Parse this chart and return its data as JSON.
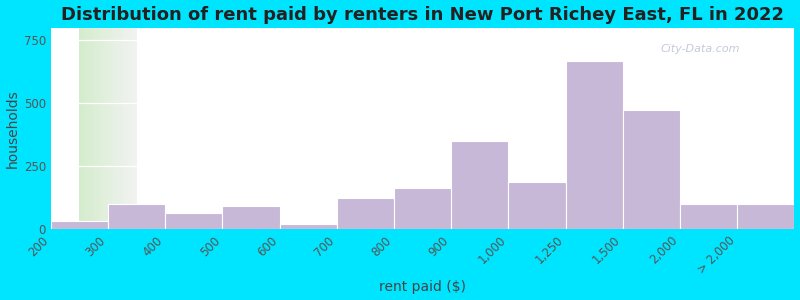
{
  "title": "Distribution of rent paid by renters in New Port Richey East, FL in 2022",
  "xlabel": "rent paid ($)",
  "ylabel": "households",
  "bar_color": "#c8b8d8",
  "bar_edgecolor": "#ffffff",
  "background_outer": "#00e5ff",
  "background_inner_left": "#d4eccc",
  "background_inner_right": "#f2f2f2",
  "categories": [
    "200",
    "300",
    "400",
    "500",
    "600",
    "700",
    "800",
    "900",
    "1,000",
    "1,250",
    "1,500",
    "2,000",
    "> 2,000"
  ],
  "values": [
    30,
    100,
    65,
    90,
    20,
    125,
    165,
    350,
    185,
    670,
    475,
    100,
    100
  ],
  "ylim": [
    0,
    800
  ],
  "yticks": [
    0,
    250,
    500,
    750
  ],
  "title_fontsize": 13,
  "axis_fontsize": 10,
  "tick_fontsize": 8.5,
  "watermark": "City-Data.com",
  "bar_positions": [
    0,
    1,
    2,
    3,
    4,
    5,
    6,
    7,
    8,
    9,
    10,
    11,
    12
  ],
  "bar_widths_rel": [
    1,
    1,
    1,
    1,
    1,
    1,
    1,
    1,
    1,
    1,
    1,
    1,
    1
  ]
}
